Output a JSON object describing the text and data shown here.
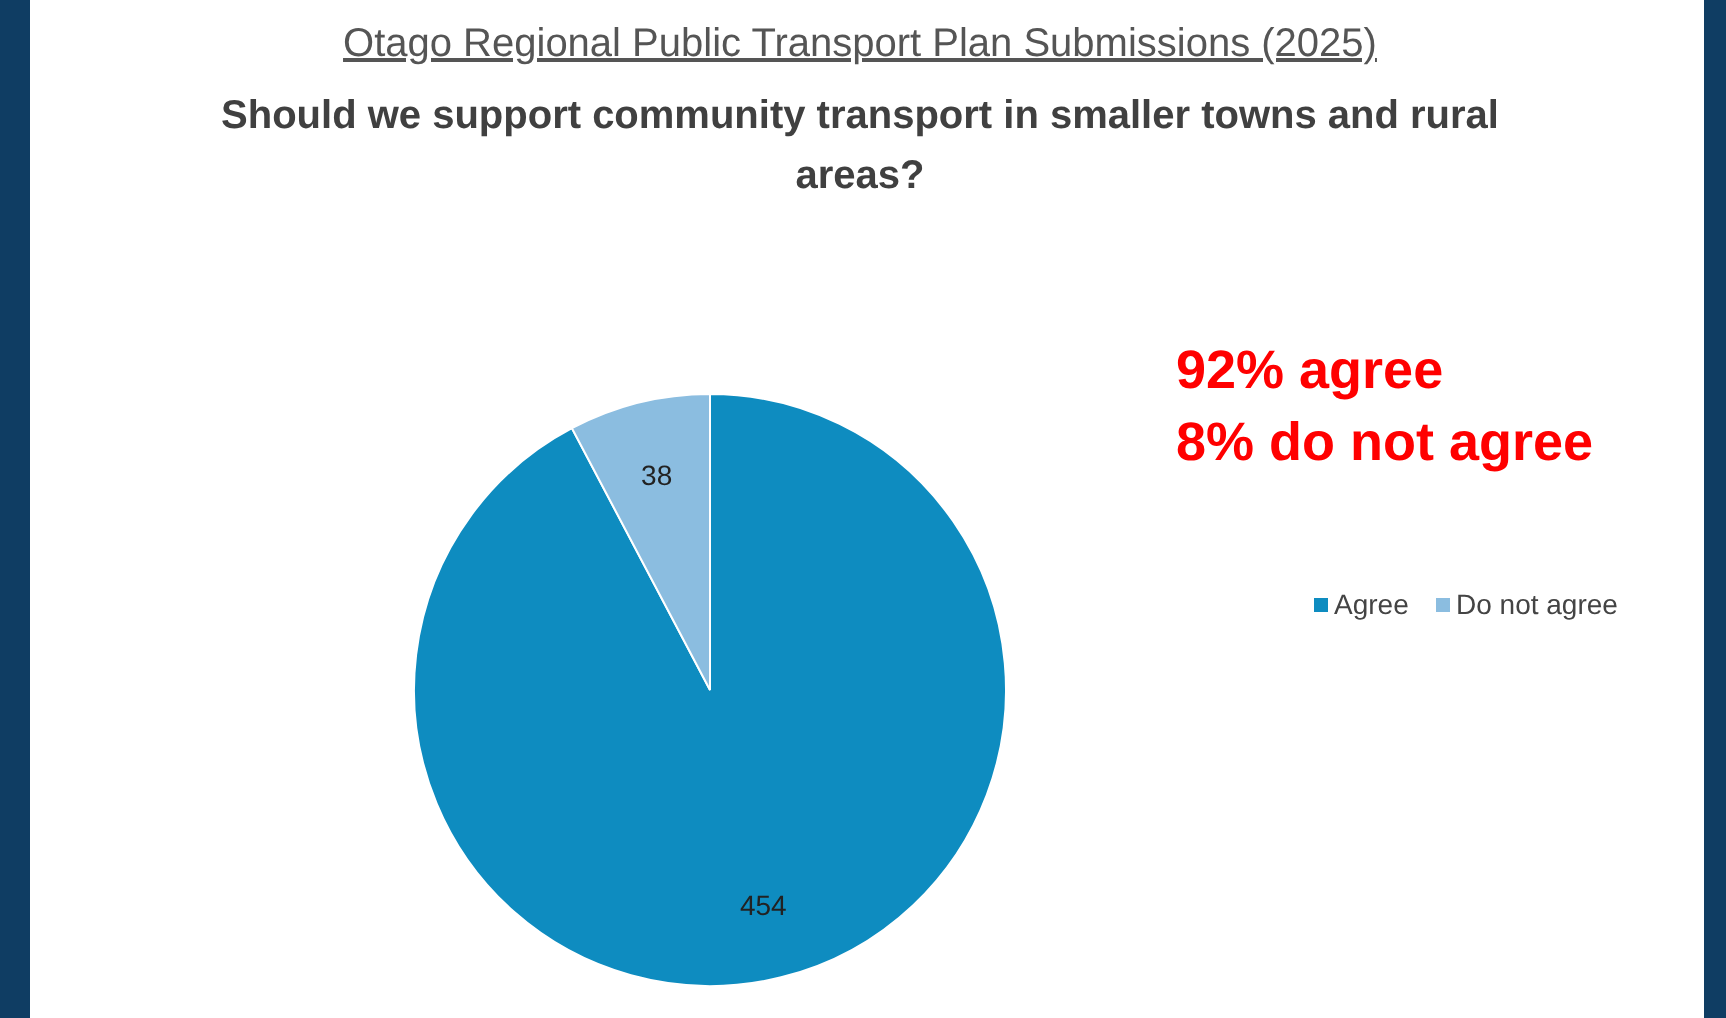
{
  "chart_data": {
    "type": "pie",
    "title": "Otago Regional Public Transport Plan Submissions (2025)",
    "subtitle": "Should we support community transport in smaller towns and rural areas?",
    "categories": [
      "Agree",
      "Do not agree"
    ],
    "values": [
      454,
      38
    ],
    "colors": [
      "#0e8cc0",
      "#8bbde0"
    ],
    "data_labels": true,
    "legend": "right",
    "annotations": [
      "92% agree",
      "8% do not agree"
    ]
  }
}
